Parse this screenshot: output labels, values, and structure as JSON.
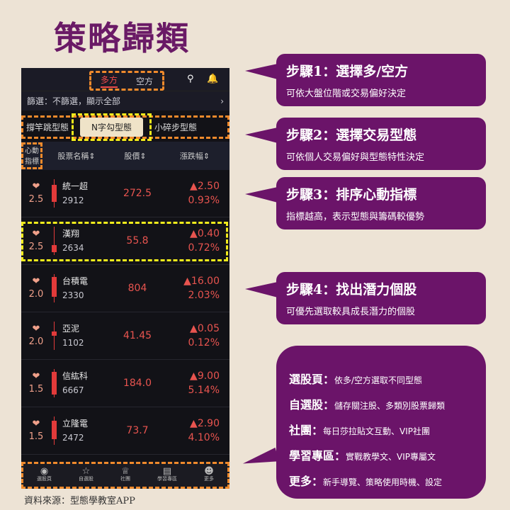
{
  "title": "策略歸類",
  "source": "資料來源：型態學教室APP",
  "app": {
    "tabs": [
      "多方",
      "空方"
    ],
    "filter": "篩選：不篩選，顯示全部",
    "patterns": [
      "撐竿跳型態",
      "N字勾型態",
      "小碎步型態"
    ],
    "columns": [
      "心動指標",
      "股票名稱",
      "股價",
      "漲跌幅"
    ],
    "rows": [
      {
        "score": "2.5",
        "name": "統一超",
        "code": "2912",
        "price": "272.5",
        "change": "▲2.50",
        "pct": "0.93%"
      },
      {
        "score": "2.5",
        "name": "漢翔",
        "code": "2634",
        "price": "55.8",
        "change": "▲0.40",
        "pct": "0.72%"
      },
      {
        "score": "2.0",
        "name": "台積電",
        "code": "2330",
        "price": "804",
        "change": "▲16.00",
        "pct": "2.03%"
      },
      {
        "score": "2.0",
        "name": "亞泥",
        "code": "1102",
        "price": "41.45",
        "change": "▲0.05",
        "pct": "0.12%"
      },
      {
        "score": "1.5",
        "name": "信紘科",
        "code": "6667",
        "price": "184.0",
        "change": "▲9.00",
        "pct": "5.14%"
      },
      {
        "score": "1.5",
        "name": "立隆電",
        "code": "2472",
        "price": "73.7",
        "change": "▲2.90",
        "pct": "4.10%"
      }
    ],
    "nav": [
      "選股頁",
      "自選股",
      "社團",
      "學習專區",
      "更多"
    ]
  },
  "steps": [
    {
      "title": "步驟1：選擇多/空方",
      "desc": "可依大盤位階或交易偏好決定"
    },
    {
      "title": "步驟2：選擇交易型態",
      "desc": "可依個人交易偏好與型態特性決定"
    },
    {
      "title": "步驟3：排序心動指標",
      "desc": "指標越高，表示型態與籌碼較優勢"
    },
    {
      "title": "步驟4：找出潛力個股",
      "desc": "可優先選取較具成長潛力的個股"
    }
  ],
  "features": [
    {
      "k": "選股頁：",
      "v": "依多/空方選取不同型態"
    },
    {
      "k": "自選股：",
      "v": "儲存關注股、多類別股票歸類"
    },
    {
      "k": "社團：",
      "v": "每日莎拉貼文互動、VIP社團"
    },
    {
      "k": "學習專區：",
      "v": "實戰教學文、VIP專屬文"
    },
    {
      "k": "更多：",
      "v": "新手導覽、策略使用時機、設定"
    }
  ],
  "colors": {
    "accent": "#6b1469",
    "up": "#e8544f",
    "highlight": "#f2ec1c",
    "outline": "#f08a2c"
  }
}
